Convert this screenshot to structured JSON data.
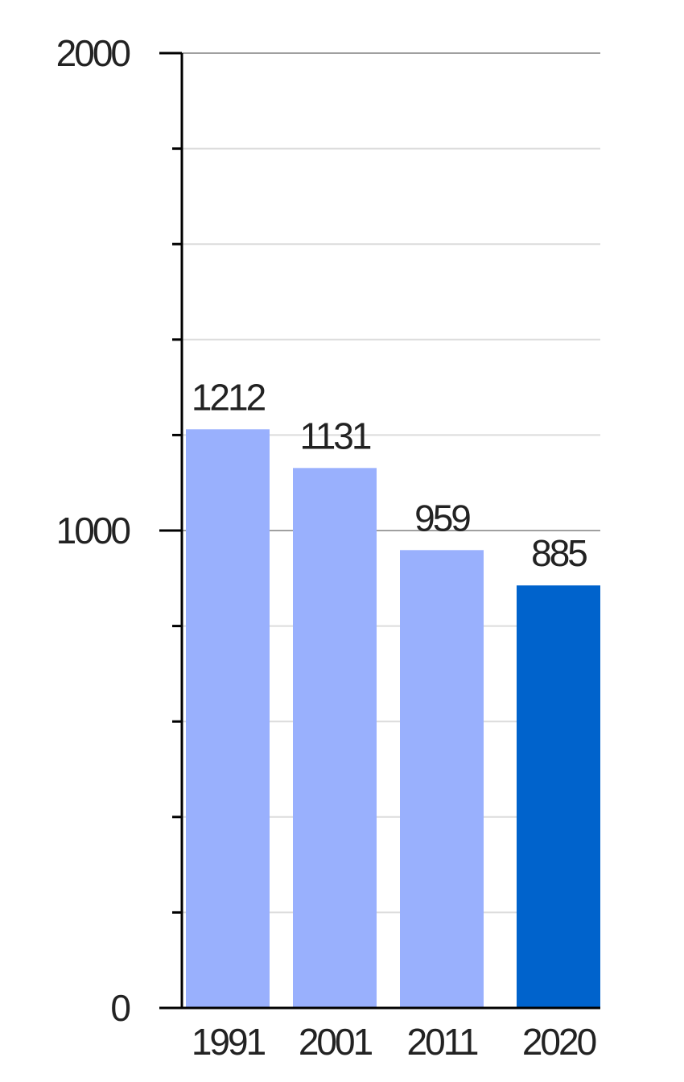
{
  "chart_data": {
    "type": "bar",
    "categories": [
      "1991",
      "2001",
      "2011",
      "2020"
    ],
    "values": [
      1212,
      1131,
      959,
      885
    ],
    "data_labels": [
      "1212",
      "1131",
      "959",
      "885"
    ],
    "title": "",
    "xlabel": "",
    "ylabel": "",
    "ylim": [
      0,
      2000
    ],
    "yticks": [
      0,
      1000,
      2000
    ],
    "ytick_labels": [
      "0",
      "1000",
      "2000"
    ],
    "minor_ticks_per_major": 5,
    "grid": true,
    "legend": "none",
    "colors": {
      "bar": "#99b0fd",
      "highlight_bar": "#0063cc",
      "axis": "#000000",
      "grid_minor": "#dcdcdc",
      "grid_major": "#a0a0a0",
      "text": "#222222"
    },
    "highlight_index": 3
  }
}
